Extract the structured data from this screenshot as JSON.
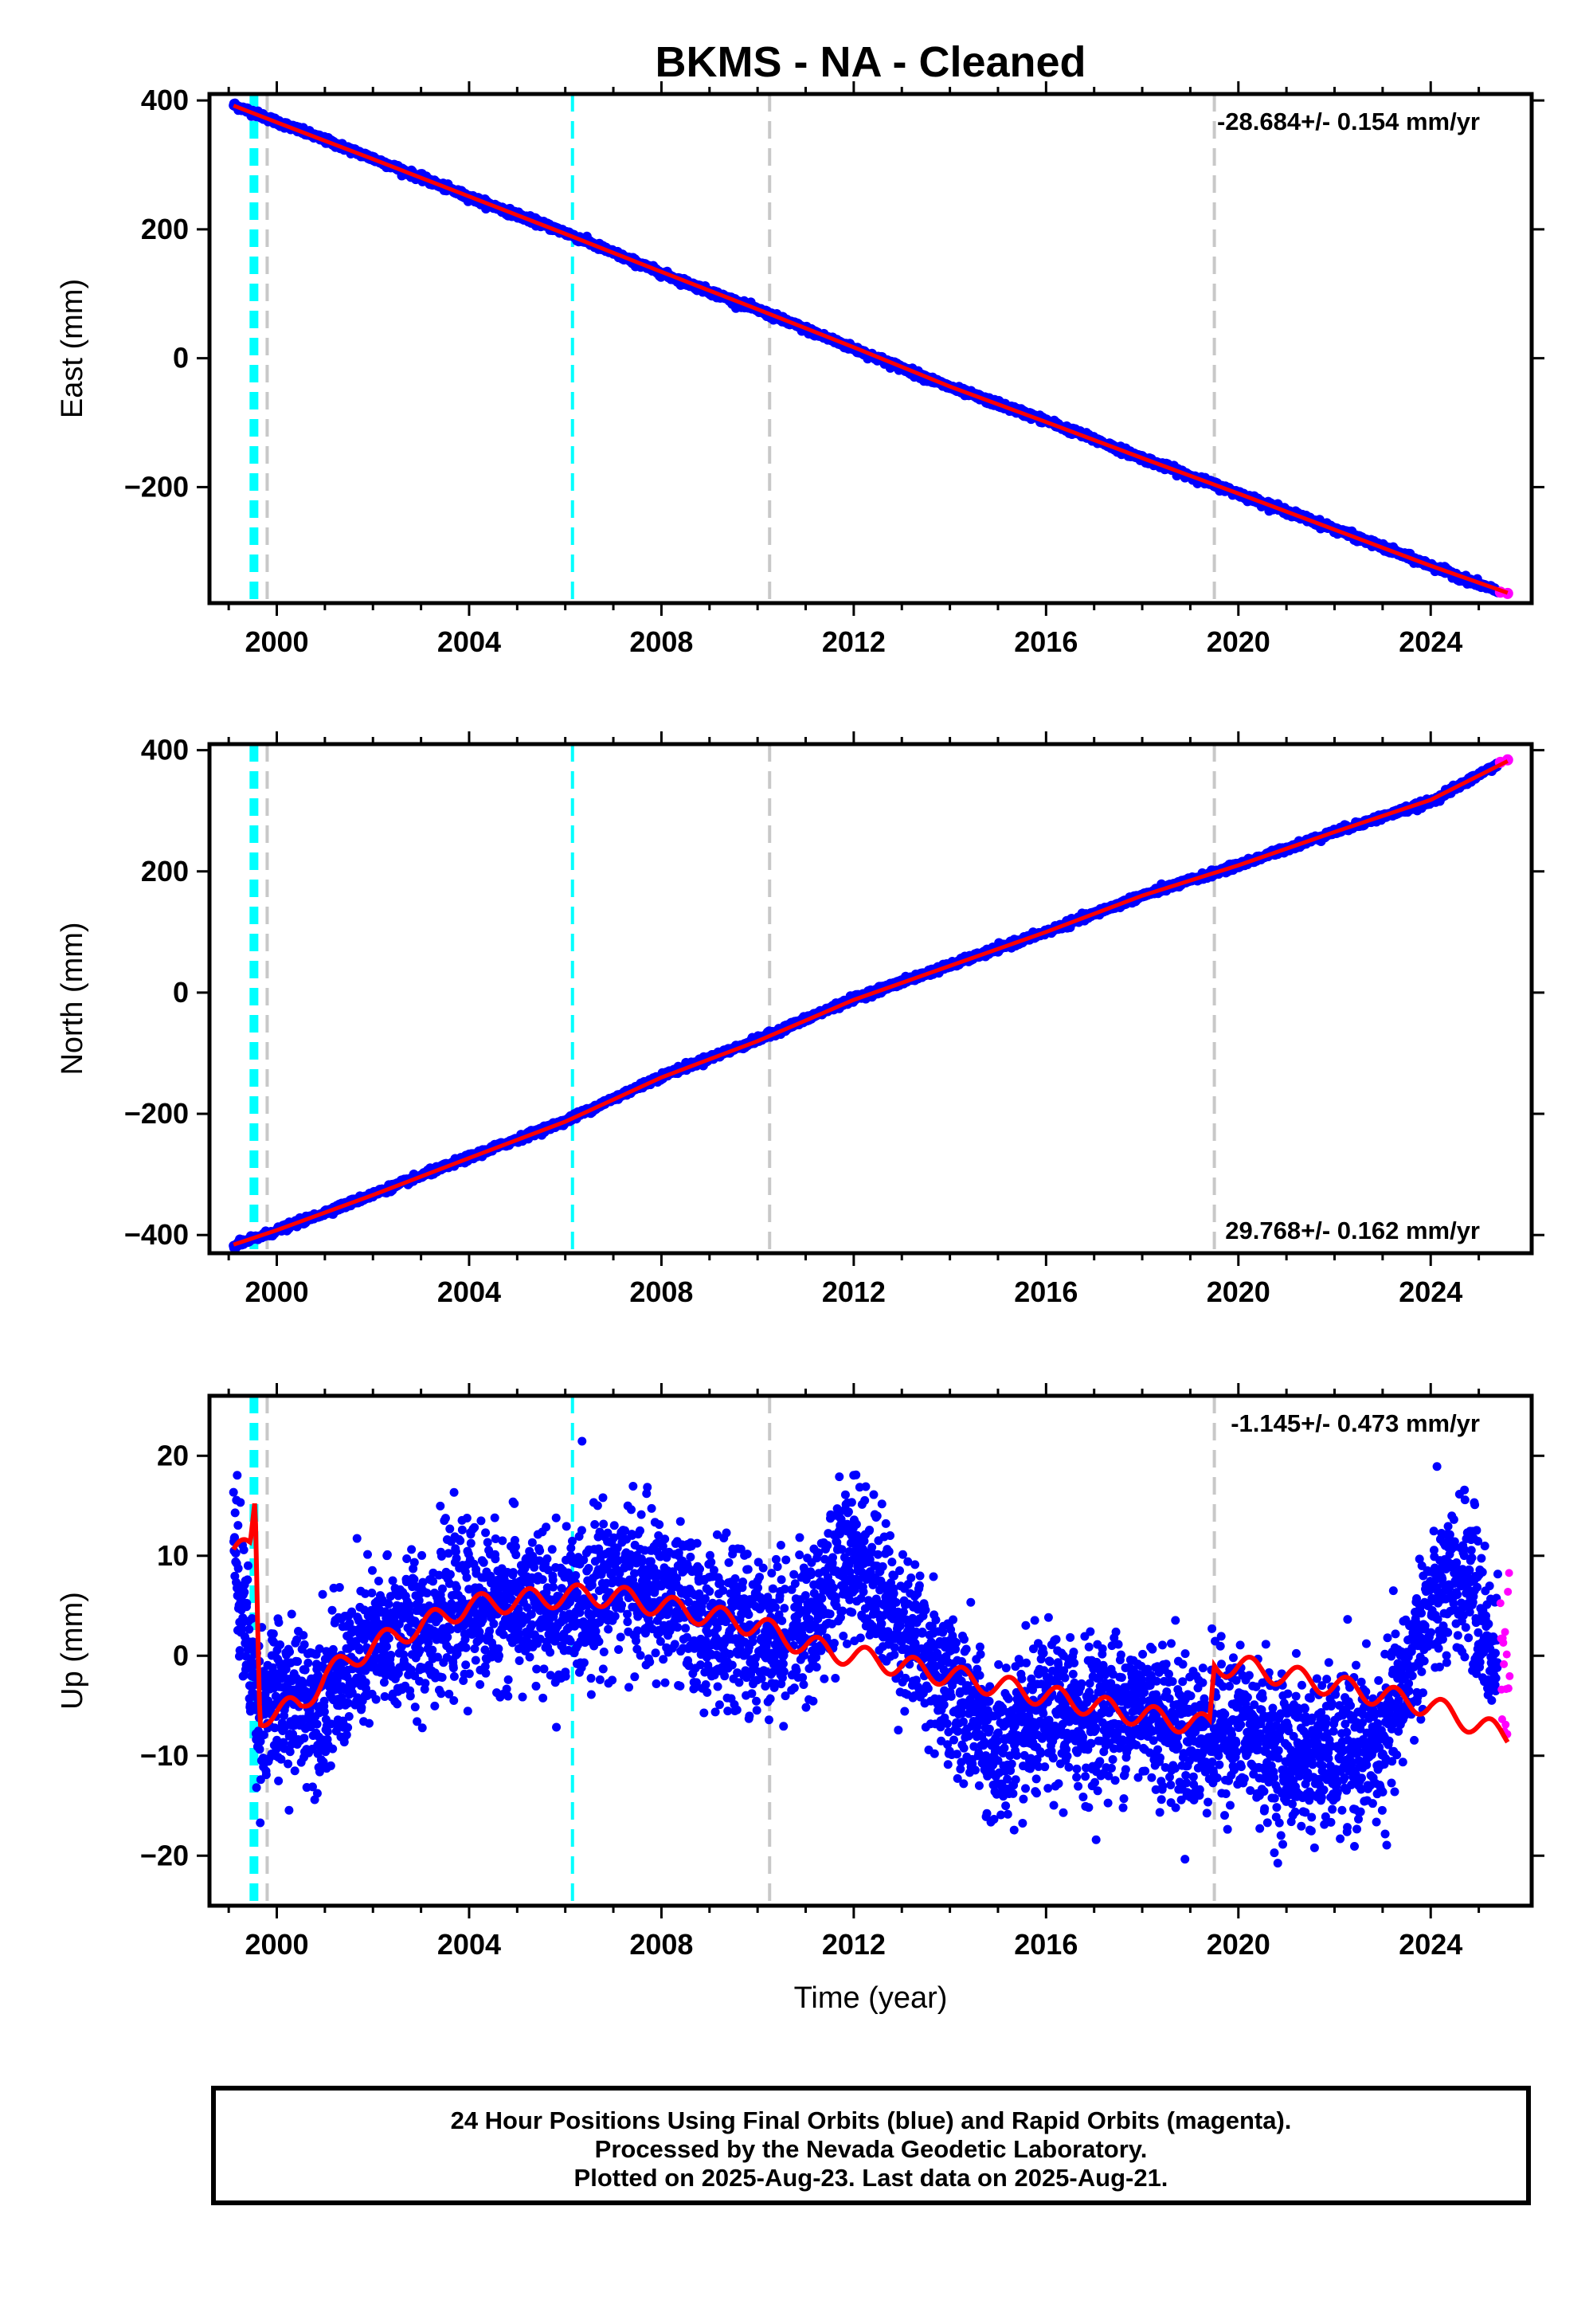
{
  "chart_data": {
    "title": "BKMS  - NA - Cleaned",
    "xlabel": "Time (year)",
    "x_ticks": [
      "2000",
      "2004",
      "2008",
      "2012",
      "2016",
      "2020",
      "2024"
    ],
    "xlim": [
      1998.6,
      2026.1
    ],
    "event_lines": [
      {
        "year": 1999.5,
        "color": "#00ffff",
        "style": "dashed-thick"
      },
      {
        "year": 1999.55,
        "color": "#00ffff",
        "style": "dashed-thick"
      },
      {
        "year": 1999.8,
        "color": "#c8c8c8",
        "style": "dashed"
      },
      {
        "year": 2006.15,
        "color": "#00ffff",
        "style": "dashed"
      },
      {
        "year": 2010.25,
        "color": "#c8c8c8",
        "style": "dashed"
      },
      {
        "year": 2019.5,
        "color": "#c8c8c8",
        "style": "dashed"
      }
    ],
    "panels": [
      {
        "type": "scatter",
        "ylabel": "East (mm)",
        "ylim": [
          -380,
          410
        ],
        "y_ticks": [
          400,
          200,
          0,
          -200
        ],
        "y_tick_labels": [
          "400",
          "200",
          "0",
          "−200"
        ],
        "rate_text": "-28.684+/- 0.154 mm/yr",
        "rate_position": "top-right",
        "series": [
          {
            "name": "Final Orbits",
            "color": "#0000ff",
            "x": [
              1999.1,
              2000,
              2002,
              2004,
              2006,
              2008,
              2010,
              2012,
              2014,
              2016,
              2018,
              2020,
              2022,
              2024,
              2025.4
            ],
            "y": [
              393,
              367,
              310,
              250,
              195,
              132,
              75,
              15,
              -45,
              -97,
              -155,
              -210,
              -265,
              -322,
              -362
            ]
          },
          {
            "name": "Rapid Orbits",
            "color": "#ff00ff",
            "x": [
              2025.45,
              2025.6
            ],
            "y": [
              -363,
              -365
            ]
          }
        ],
        "model": {
          "color": "#ff0000",
          "x": [
            1999.1,
            2000,
            2002,
            2004,
            2006,
            2008,
            2010,
            2012,
            2014,
            2016,
            2018,
            2020,
            2022,
            2024,
            2025.6
          ],
          "y": [
            392,
            366,
            309,
            251,
            193,
            134,
            76,
            17,
            -44,
            -99,
            -155,
            -210,
            -266,
            -322,
            -364
          ]
        }
      },
      {
        "type": "scatter",
        "ylabel": "North (mm)",
        "ylim": [
          -430,
          410
        ],
        "y_ticks": [
          400,
          200,
          0,
          -200,
          -400
        ],
        "y_tick_labels": [
          "400",
          "200",
          "0",
          "−200",
          "−400"
        ],
        "rate_text": "29.768+/- 0.162 mm/yr",
        "rate_position": "bottom-right",
        "series": [
          {
            "name": "Final Orbits",
            "color": "#0000ff",
            "x": [
              1999.1,
              2000,
              2002,
              2004,
              2006,
              2008,
              2010,
              2012,
              2014,
              2016,
              2018,
              2020,
              2022,
              2024,
              2025.4
            ],
            "y": [
              -418,
              -393,
              -333,
              -272,
              -212,
              -138,
              -78,
              -10,
              45,
              100,
              160,
              210,
              265,
              315,
              377
            ]
          },
          {
            "name": "Rapid Orbits",
            "color": "#ff00ff",
            "x": [
              2025.45,
              2025.6
            ],
            "y": [
              380,
              384
            ]
          }
        ],
        "model": {
          "color": "#ff0000",
          "x": [
            1999.1,
            2000,
            2002,
            2004,
            2006,
            2008,
            2010,
            2012,
            2014,
            2016,
            2018,
            2020,
            2022,
            2024,
            2025.6
          ],
          "y": [
            -416,
            -392,
            -334,
            -273,
            -213,
            -140,
            -80,
            -12,
            44,
            100,
            160,
            210,
            265,
            318,
            382
          ]
        }
      },
      {
        "type": "scatter",
        "ylabel": "Up (mm)",
        "ylim": [
          -25,
          26
        ],
        "y_ticks": [
          20,
          10,
          0,
          -10,
          -20
        ],
        "y_tick_labels": [
          "20",
          "10",
          "0",
          "−10",
          "−20"
        ],
        "rate_text": "-1.145+/- 0.473 mm/yr",
        "rate_position": "top-right",
        "trend_yearly": [
          [
            1999.0,
            14
          ],
          [
            1999.6,
            -5
          ],
          [
            2000.0,
            -5
          ],
          [
            2001.0,
            -4
          ],
          [
            2002.0,
            1
          ],
          [
            2003.0,
            3
          ],
          [
            2004.0,
            5
          ],
          [
            2005.0,
            5
          ],
          [
            2006.0,
            4
          ],
          [
            2007.0,
            8
          ],
          [
            2008.0,
            6
          ],
          [
            2009.0,
            3
          ],
          [
            2010.0,
            2
          ],
          [
            2011.0,
            3
          ],
          [
            2012.0,
            11
          ],
          [
            2013.0,
            3
          ],
          [
            2014.0,
            -3
          ],
          [
            2015.0,
            -10
          ],
          [
            2016.0,
            -6
          ],
          [
            2017.0,
            -6
          ],
          [
            2018.0,
            -5
          ],
          [
            2019.0,
            -8
          ],
          [
            2020.0,
            -7
          ],
          [
            2021.0,
            -10
          ],
          [
            2022.0,
            -10
          ],
          [
            2023.0,
            -9
          ],
          [
            2024.0,
            5
          ],
          [
            2024.8,
            8
          ],
          [
            2025.3,
            0
          ]
        ],
        "scatter_amplitude": 5,
        "series": [
          {
            "name": "Final Orbits",
            "color": "#0000ff"
          },
          {
            "name": "Rapid Orbits",
            "color": "#ff00ff",
            "x": [
              2025.45,
              2025.5,
              2025.55,
              2025.6,
              2025.65
            ],
            "y": [
              9,
              6,
              1,
              -4,
              3
            ]
          }
        ],
        "model": {
          "color": "#ff0000",
          "x": [
            1999.1,
            1999.45,
            1999.55,
            1999.6,
            1999.65,
            2000.5,
            2001.0,
            2002.0,
            2003.0,
            2003.5,
            2004.0,
            2006.0,
            2007.0,
            2008.0,
            2009.0,
            2010.0,
            2011.0,
            2012.0,
            2013.0,
            2014.0,
            2015.0,
            2016.0,
            2017.0,
            2018.0,
            2019.4,
            2019.5,
            2020.0,
            2021.0,
            2022.0,
            2023.0,
            2024.0,
            2025.0,
            2025.6
          ],
          "y": [
            10,
            11,
            16,
            4,
            -6,
            -5,
            -2,
            1,
            3,
            4,
            5,
            6,
            6,
            5,
            4,
            3,
            1,
            0,
            -1,
            -2,
            -3,
            -4,
            -5,
            -6,
            -7,
            -1,
            -1,
            -2,
            -3,
            -4,
            -5,
            -7,
            -8
          ]
        }
      }
    ]
  },
  "footer": {
    "line1": "24 Hour Positions Using Final Orbits (blue) and Rapid Orbits (magenta).",
    "line2": "Processed by the Nevada Geodetic Laboratory.",
    "line3": "Plotted on 2025-Aug-23. Last data on 2025-Aug-21."
  }
}
